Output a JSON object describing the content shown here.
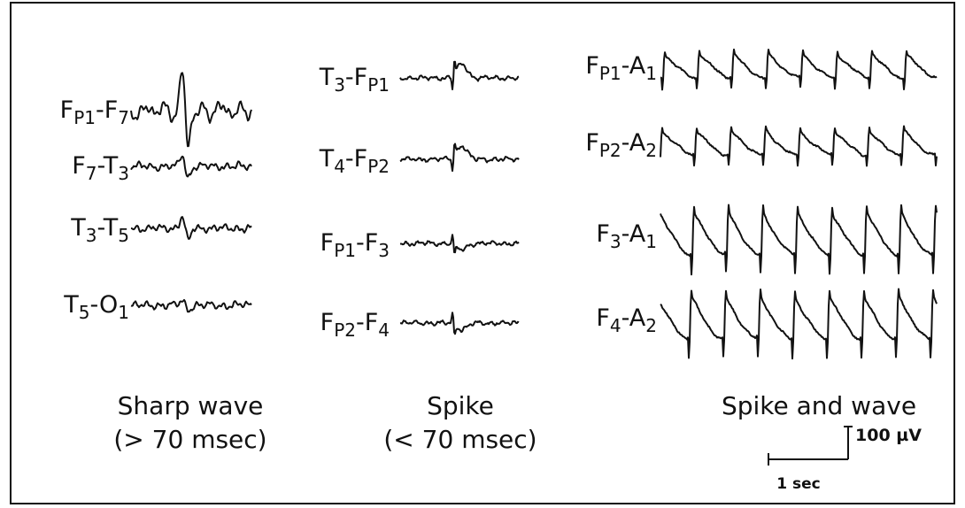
{
  "columns": [
    {
      "channels": [
        [
          "F",
          "P1",
          "-F",
          "7"
        ],
        [
          "F",
          "7",
          "-T",
          "3"
        ],
        [
          "T",
          "3",
          "-T",
          "5"
        ],
        [
          "T",
          "5",
          "-O",
          "1"
        ]
      ],
      "caption": [
        "Sharp wave",
        "(> 70 msec)"
      ]
    },
    {
      "channels": [
        [
          "T",
          "3",
          "-F",
          "P1"
        ],
        [
          "T",
          "4",
          "-F",
          "P2"
        ],
        [
          "F",
          "P1",
          "-F",
          "3"
        ],
        [
          "F",
          "P2",
          "-F",
          "4"
        ]
      ],
      "caption": [
        "Spike",
        "(< 70 msec)"
      ]
    },
    {
      "channels": [
        [
          "F",
          "P1",
          "-A",
          "1"
        ],
        [
          "F",
          "P2",
          "-A",
          "2"
        ],
        [
          "F",
          "3",
          "-A",
          "1"
        ],
        [
          "F",
          "4",
          "-A",
          "2"
        ]
      ],
      "caption": [
        "Spike and wave"
      ]
    }
  ],
  "scale": {
    "amplitude": "100 µV",
    "time": "1 sec"
  }
}
